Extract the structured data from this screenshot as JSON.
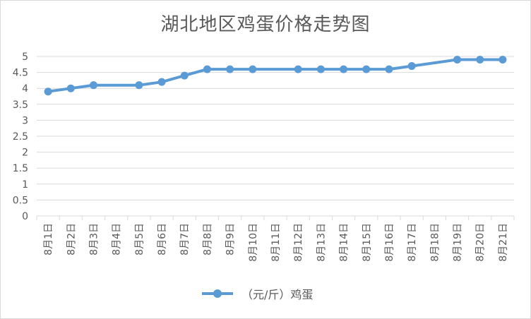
{
  "chart_data": {
    "type": "line",
    "title": "湖北地区鸡蛋价格走势图",
    "categories": [
      "8月1日",
      "8月2日",
      "8月3日",
      "8月4日",
      "8月5日",
      "8月6日",
      "8月7日",
      "8月8日",
      "8月9日",
      "8月10日",
      "8月11日",
      "8月12日",
      "8月13日",
      "8月14日",
      "8月15日",
      "8月16日",
      "8月17日",
      "8月18日",
      "8月19日",
      "8月20日",
      "8月21日"
    ],
    "series": [
      {
        "name": "（元/斤）鸡蛋",
        "color": "#5b9bd5",
        "values": [
          3.9,
          4.0,
          4.1,
          null,
          4.1,
          4.2,
          4.4,
          4.6,
          4.6,
          4.6,
          null,
          4.6,
          4.6,
          4.6,
          4.6,
          4.6,
          4.7,
          null,
          4.9,
          4.9,
          4.9
        ]
      }
    ],
    "yticks": [
      "0",
      "0.5",
      "1",
      "1.5",
      "2",
      "2.5",
      "3",
      "3.5",
      "4",
      "4.5",
      "5"
    ],
    "ylim": [
      0,
      5
    ],
    "grid": true,
    "legend_position": "bottom"
  }
}
